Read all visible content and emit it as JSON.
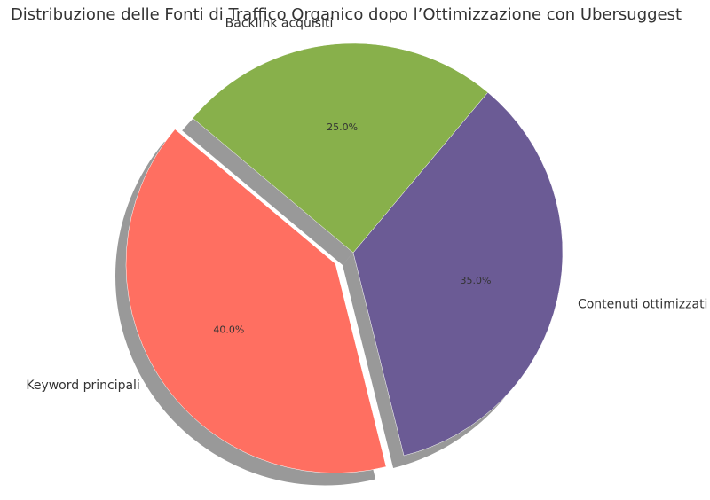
{
  "chart_data": {
    "type": "pie",
    "title": "Distribuzione delle Fonti di Traffico Organico dopo l’Ottimizzazione con Ubersuggest",
    "categories": [
      "Keyword principali",
      "Contenuti ottimizzati",
      "Backlink acquisiti"
    ],
    "values": [
      40,
      35,
      25
    ],
    "value_labels": [
      "40.0%",
      "35.0%",
      "25.0%"
    ],
    "colors": [
      "#ff6f61",
      "#6b5b95",
      "#88b04b"
    ],
    "explode": [
      0.1,
      0,
      0
    ],
    "shadow": true
  }
}
